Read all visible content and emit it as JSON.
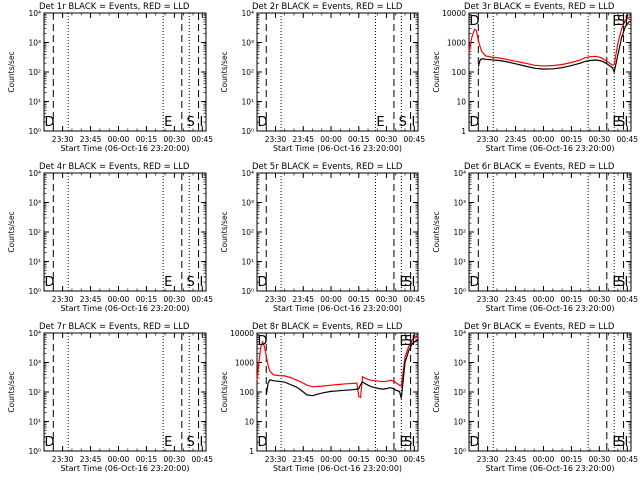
{
  "chart_data": [
    {
      "type": "line",
      "panel": "det1",
      "title": "Det 1r  BLACK = Events, RED = LLD",
      "ylabel": "Counts/sec",
      "xlabel": "Start Time (06-Oct-16 23:20:00)",
      "log_y": true,
      "ylim_log": [
        1,
        10000
      ],
      "ytick_labels": [
        "10⁰",
        "10¹",
        "10²",
        "10³",
        "10⁴"
      ],
      "xlim_min": [
        0,
        87
      ],
      "xticks_min": [
        10,
        25,
        40,
        55,
        70,
        85
      ],
      "xtick_labels": [
        "23:30",
        "23:45",
        "00:00",
        "00:15",
        "00:30",
        "00:45"
      ],
      "vlines": {
        "dashed": [
          5,
          74,
          83
        ],
        "dotted": [
          13,
          64,
          78
        ]
      },
      "markers": [
        {
          "label": "D",
          "x": 0.3
        },
        {
          "label": "E",
          "x": 64.5
        },
        {
          "label": "S",
          "x": 76.5
        },
        {
          "label": "I",
          "x": 83.5
        }
      ],
      "series": []
    },
    {
      "type": "line",
      "panel": "det2",
      "title": "Det 2r  BLACK = Events, RED = LLD",
      "ylabel": "Counts/sec",
      "xlabel": "Start Time (06-Oct-16 23:20:00)",
      "log_y": true,
      "ylim_log": [
        1,
        10000
      ],
      "ytick_labels": [
        "10⁰",
        "10¹",
        "10²",
        "10³",
        "10⁴"
      ],
      "xlim_min": [
        0,
        87
      ],
      "xticks_min": [
        10,
        25,
        40,
        55,
        70,
        85
      ],
      "xtick_labels": [
        "23:30",
        "23:45",
        "00:00",
        "00:15",
        "00:30",
        "00:45"
      ],
      "vlines": {
        "dashed": [
          5,
          74,
          83
        ],
        "dotted": [
          13,
          64,
          78
        ]
      },
      "markers": [
        {
          "label": "D",
          "x": 0.3
        },
        {
          "label": "E",
          "x": 64.5
        },
        {
          "label": "S",
          "x": 76.5
        },
        {
          "label": "I",
          "x": 83.5
        }
      ],
      "series": []
    },
    {
      "type": "line",
      "panel": "det3",
      "title": "Det 3r  BLACK = Events, RED = LLD",
      "ylabel": "Counts/sec",
      "xlabel": "Start Time (06-Oct-16 23:20:00)",
      "log_y": true,
      "ylim_log": [
        1,
        10000
      ],
      "ytick_labels": [
        "1",
        "10",
        "100",
        "1000",
        "10000"
      ],
      "xlim_min": [
        0,
        87
      ],
      "xticks_min": [
        10,
        25,
        40,
        55,
        70,
        85
      ],
      "xtick_labels": [
        "23:30",
        "23:45",
        "00:00",
        "00:15",
        "00:30",
        "00:45"
      ],
      "vlines": {
        "dashed": [
          5,
          74,
          83
        ],
        "dotted": [
          13,
          64,
          78
        ]
      },
      "markers": [
        {
          "label": "D",
          "x": 0.3
        },
        {
          "label": "E",
          "x": 77
        },
        {
          "label": "S",
          "x": 79.5
        },
        {
          "label": "I",
          "x": 83.5
        }
      ],
      "series": [
        {
          "name": "",
          "color": "#ff0000",
          "x": [
            0,
            1.5,
            3,
            4,
            5,
            6,
            7,
            9,
            12,
            16,
            20,
            25,
            30,
            35,
            40,
            45,
            50,
            55,
            60,
            62,
            65,
            68,
            70,
            72,
            74,
            76,
            77,
            78,
            80,
            82,
            84,
            86,
            87
          ],
          "y": [
            500,
            1500,
            2800,
            2500,
            1200,
            700,
            480,
            350,
            320,
            300,
            270,
            230,
            200,
            170,
            160,
            165,
            180,
            210,
            260,
            300,
            330,
            340,
            320,
            280,
            230,
            190,
            170,
            180,
            1000,
            3000,
            5800,
            7000,
            7500
          ]
        },
        {
          "name": "",
          "color": "#000000",
          "x": [
            5,
            6,
            7,
            9,
            12,
            16,
            20,
            25,
            30,
            35,
            40,
            45,
            50,
            55,
            60,
            62,
            65,
            68,
            70,
            72,
            74,
            76,
            77,
            78,
            80,
            82,
            84,
            86,
            87
          ],
          "y": [
            150,
            260,
            280,
            270,
            260,
            245,
            225,
            190,
            160,
            135,
            125,
            128,
            140,
            165,
            200,
            225,
            245,
            255,
            245,
            225,
            190,
            155,
            140,
            100,
            400,
            1500,
            3500,
            5000,
            5500
          ]
        }
      ]
    },
    {
      "type": "line",
      "panel": "det4",
      "title": "Det 4r  BLACK = Events, RED = LLD",
      "ylabel": "Counts/sec",
      "xlabel": "Start Time (06-Oct-16 23:20:00)",
      "log_y": true,
      "ylim_log": [
        1,
        10000
      ],
      "ytick_labels": [
        "10⁰",
        "10¹",
        "10²",
        "10³",
        "10⁴"
      ],
      "xlim_min": [
        0,
        87
      ],
      "xticks_min": [
        10,
        25,
        40,
        55,
        70,
        85
      ],
      "xtick_labels": [
        "23:30",
        "23:45",
        "00:00",
        "00:15",
        "00:30",
        "00:45"
      ],
      "vlines": {
        "dashed": [
          5,
          74,
          83
        ],
        "dotted": [
          13,
          64,
          78
        ]
      },
      "markers": [
        {
          "label": "D",
          "x": 0.3
        },
        {
          "label": "E",
          "x": 64.5
        },
        {
          "label": "S",
          "x": 76.5
        },
        {
          "label": "I",
          "x": 83.5
        }
      ],
      "series": []
    },
    {
      "type": "line",
      "panel": "det5",
      "title": "Det 5r  BLACK = Events, RED = LLD",
      "ylabel": "Counts/sec",
      "xlabel": "Start Time (06-Oct-16 23:20:00)",
      "log_y": true,
      "ylim_log": [
        1,
        10000
      ],
      "ytick_labels": [
        "10⁰",
        "10¹",
        "10²",
        "10³",
        "10⁴"
      ],
      "xlim_min": [
        0,
        87
      ],
      "xticks_min": [
        10,
        25,
        40,
        55,
        70,
        85
      ],
      "xtick_labels": [
        "23:30",
        "23:45",
        "00:00",
        "00:15",
        "00:30",
        "00:45"
      ],
      "vlines": {
        "dashed": [
          5,
          74,
          83
        ],
        "dotted": [
          13,
          64,
          78
        ]
      },
      "markers": [
        {
          "label": "D",
          "x": 0.3
        },
        {
          "label": "E",
          "x": 77
        },
        {
          "label": "S",
          "x": 79.5
        },
        {
          "label": "I",
          "x": 83.5
        }
      ],
      "series": []
    },
    {
      "type": "line",
      "panel": "det6",
      "title": "Det 6r  BLACK = Events, RED = LLD",
      "ylabel": "Counts/sec",
      "xlabel": "Start Time (06-Oct-16 23:20:00)",
      "log_y": true,
      "ylim_log": [
        1,
        10000
      ],
      "ytick_labels": [
        "10⁰",
        "10¹",
        "10²",
        "10³",
        "10⁴"
      ],
      "xlim_min": [
        0,
        87
      ],
      "xticks_min": [
        10,
        25,
        40,
        55,
        70,
        85
      ],
      "xtick_labels": [
        "23:30",
        "23:45",
        "00:00",
        "00:15",
        "00:30",
        "00:45"
      ],
      "vlines": {
        "dashed": [
          5,
          74,
          83
        ],
        "dotted": [
          13,
          64,
          78
        ]
      },
      "markers": [
        {
          "label": "D",
          "x": 0.3
        },
        {
          "label": "E",
          "x": 77
        },
        {
          "label": "S",
          "x": 79.5
        },
        {
          "label": "I",
          "x": 83.5
        }
      ],
      "series": []
    },
    {
      "type": "line",
      "panel": "det7",
      "title": "Det 7r  BLACK = Events, RED = LLD",
      "ylabel": "Counts/sec",
      "xlabel": "Start Time (06-Oct-16 23:20:00)",
      "log_y": true,
      "ylim_log": [
        1,
        10000
      ],
      "ytick_labels": [
        "10⁰",
        "10¹",
        "10²",
        "10³",
        "10⁴"
      ],
      "xlim_min": [
        0,
        87
      ],
      "xticks_min": [
        10,
        25,
        40,
        55,
        70,
        85
      ],
      "xtick_labels": [
        "23:30",
        "23:45",
        "00:00",
        "00:15",
        "00:30",
        "00:45"
      ],
      "vlines": {
        "dashed": [
          5,
          74,
          83
        ],
        "dotted": [
          13,
          64,
          78
        ]
      },
      "markers": [
        {
          "label": "D",
          "x": 0.3
        },
        {
          "label": "E",
          "x": 64.5
        },
        {
          "label": "S",
          "x": 76.5
        },
        {
          "label": "I",
          "x": 83.5
        }
      ],
      "series": []
    },
    {
      "type": "line",
      "panel": "det8",
      "title": "Det 8r  BLACK = Events, RED = LLD",
      "ylabel": "Counts/sec",
      "xlabel": "Start Time (06-Oct-16 23:20:00)",
      "log_y": true,
      "ylim_log": [
        1,
        10000
      ],
      "ytick_labels": [
        "1",
        "10",
        "100",
        "1000",
        "10000"
      ],
      "xlim_min": [
        0,
        87
      ],
      "xticks_min": [
        10,
        25,
        40,
        55,
        70,
        85
      ],
      "xtick_labels": [
        "23:30",
        "23:45",
        "00:00",
        "00:15",
        "00:30",
        "00:45"
      ],
      "vlines": {
        "dashed": [
          5,
          74,
          83
        ],
        "dotted": [
          13,
          64,
          78
        ]
      },
      "markers": [
        {
          "label": "D",
          "x": 0.3
        },
        {
          "label": "E",
          "x": 77
        },
        {
          "label": "S",
          "x": 79.5
        },
        {
          "label": "I",
          "x": 83.5
        }
      ],
      "series": [
        {
          "name": "",
          "color": "#ff0000",
          "x": [
            0,
            1,
            2,
            3,
            4,
            5,
            6,
            7,
            9,
            12,
            15,
            18,
            21,
            23,
            25,
            27,
            30,
            33,
            36,
            40,
            44,
            48,
            52,
            54,
            55,
            56,
            57,
            58,
            60,
            62,
            64,
            66,
            68,
            70,
            72,
            74,
            75,
            76,
            77,
            78,
            79,
            80,
            82,
            84,
            86,
            87
          ],
          "y": [
            250,
            1000,
            3200,
            5000,
            3500,
            1600,
            800,
            500,
            380,
            360,
            350,
            310,
            260,
            230,
            200,
            170,
            150,
            155,
            160,
            170,
            180,
            190,
            195,
            200,
            70,
            65,
            330,
            300,
            270,
            250,
            240,
            230,
            225,
            230,
            250,
            230,
            210,
            190,
            170,
            160,
            500,
            1500,
            3500,
            6000,
            7500,
            8000
          ]
        },
        {
          "name": "",
          "color": "#000000",
          "x": [
            5,
            6,
            7,
            9,
            12,
            15,
            18,
            21,
            23,
            25,
            27,
            30,
            33,
            36,
            40,
            44,
            48,
            52,
            54,
            55,
            56,
            57,
            58,
            60,
            62,
            64,
            66,
            68,
            70,
            72,
            74,
            75,
            76,
            77,
            78,
            79,
            80,
            82,
            84,
            86,
            87
          ],
          "y": [
            80,
            200,
            260,
            240,
            230,
            215,
            180,
            150,
            125,
            100,
            80,
            75,
            85,
            95,
            105,
            110,
            115,
            120,
            125,
            130,
            180,
            220,
            200,
            170,
            150,
            140,
            130,
            125,
            130,
            140,
            130,
            115,
            110,
            105,
            60,
            250,
            1000,
            2500,
            4500,
            5500,
            6000
          ]
        }
      ]
    },
    {
      "type": "line",
      "panel": "det9",
      "title": "Det 9r  BLACK = Events, RED = LLD",
      "ylabel": "Counts/sec",
      "xlabel": "Start Time (06-Oct-16 23:20:00)",
      "log_y": true,
      "ylim_log": [
        1,
        10000
      ],
      "ytick_labels": [
        "10⁰",
        "10¹",
        "10²",
        "10³",
        "10⁴"
      ],
      "xlim_min": [
        0,
        87
      ],
      "xticks_min": [
        10,
        25,
        40,
        55,
        70,
        85
      ],
      "xtick_labels": [
        "23:30",
        "23:45",
        "00:00",
        "00:15",
        "00:30",
        "00:45"
      ],
      "vlines": {
        "dashed": [
          5,
          74,
          83
        ],
        "dotted": [
          13,
          64,
          78
        ]
      },
      "markers": [
        {
          "label": "D",
          "x": 0.3
        },
        {
          "label": "E",
          "x": 77
        },
        {
          "label": "S",
          "x": 79.5
        },
        {
          "label": "I",
          "x": 83.5
        }
      ],
      "series": []
    }
  ]
}
